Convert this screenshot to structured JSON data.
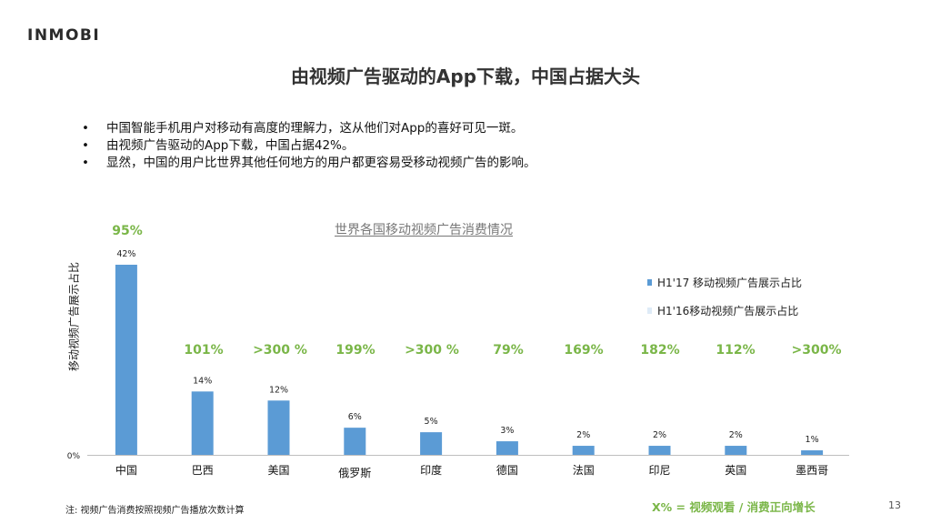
{
  "logo": "INMOBI",
  "title": "由视频广告驱动的App下载，中国占据大头",
  "bullets": [
    "中国智能手机用户对移动有高度的理解力，这从他们对App的喜好可见一斑。",
    "由视频广告驱动的App下载，中国占据42%。",
    "显然，中国的用户比世界其他任何地方的用户都更容易受移动视频广告的影响。"
  ],
  "note": "注: 视频广告消费按照视频广告播放次数计算",
  "footer_legend": "X% = 视频观看 / 消费正向增长",
  "page_number": "13",
  "colors": {
    "bar_h117": "#5b9bd5",
    "bar_h116": "#deebf7",
    "growth": "#7ab648"
  },
  "chart_data": {
    "type": "bar",
    "title": "世界各国移动视频广告消费情况",
    "ylabel": "移动视频广告展示占比",
    "ylim": [
      0,
      42
    ],
    "y_axis_tick_label": "0%",
    "categories": [
      "中国",
      "巴西",
      "美国",
      "俄罗斯",
      "印度",
      "德国",
      "法国",
      "印尼",
      "英国",
      "墨西哥"
    ],
    "series": [
      {
        "name": "H1'17 移动视频广告展示占比",
        "values": [
          42,
          14,
          12,
          6,
          5,
          3,
          2,
          2,
          2,
          1
        ],
        "labels": [
          "42%",
          "14%",
          "12%",
          "6%",
          "5%",
          "3%",
          "2%",
          "2%",
          "2%",
          "1%"
        ]
      },
      {
        "name": "H1'16移动视频广告展示占比"
      }
    ],
    "growth_labels": [
      "95%",
      "101%",
      ">300 %",
      "199%",
      ">300 %",
      "79%",
      "169%",
      "182%",
      "112%",
      ">300%"
    ],
    "legend_position": "right"
  }
}
